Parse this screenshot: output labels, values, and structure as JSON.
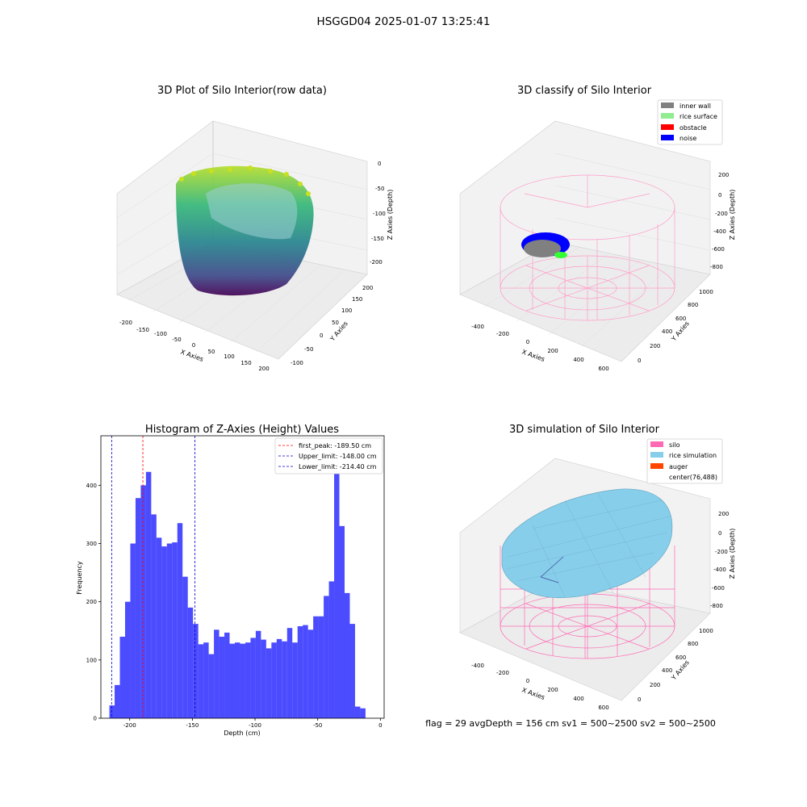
{
  "suptitle": "HSGGD04 2025-01-07 13:25:41",
  "footer": "flag = 29  avgDepth = 156 cm  sv1 = 500~2500  sv2 = 500~2500",
  "panels": {
    "raw": {
      "title": "3D Plot of Silo Interior(row data)",
      "xlabel": "X Axies",
      "ylabel": "Y Axies",
      "zlabel": "Z Axies (Depth)",
      "xticks": [
        "-200",
        "-150",
        "-100",
        "-50",
        "0",
        "50",
        "100",
        "150",
        "200"
      ],
      "yticks": [
        "-100",
        "-50",
        "0",
        "50",
        "100",
        "150",
        "200"
      ],
      "zticks": [
        "0",
        "-50",
        "-100",
        "-150",
        "-200"
      ]
    },
    "classify": {
      "title": "3D classify of Silo Interior",
      "xlabel": "X Axies",
      "ylabel": "Y Axies",
      "zlabel": "Z Axies (Depth)",
      "xticks": [
        "-400",
        "-200",
        "0",
        "200",
        "400",
        "600"
      ],
      "yticks": [
        "0",
        "200",
        "400",
        "600",
        "800",
        "1000"
      ],
      "zticks": [
        "200",
        "0",
        "-200",
        "-400",
        "-600",
        "-800"
      ],
      "legend": [
        {
          "label": "inner wall",
          "color": "#808080"
        },
        {
          "label": "rice surface",
          "color": "#90ee90"
        },
        {
          "label": "obstacle",
          "color": "#ff0000"
        },
        {
          "label": "noise",
          "color": "#0000ff"
        }
      ]
    },
    "simulation": {
      "title": "3D simulation of Silo Interior",
      "xlabel": "X Axies",
      "ylabel": "Y Axies",
      "zlabel": "Z Axies (Depth)",
      "xticks": [
        "-400",
        "-200",
        "0",
        "200",
        "400",
        "600"
      ],
      "yticks": [
        "0",
        "200",
        "400",
        "600",
        "800",
        "1000"
      ],
      "zticks": [
        "200",
        "0",
        "-200",
        "-400",
        "-600",
        "-800"
      ],
      "legend": [
        {
          "label": "silo",
          "color": "#ff69b4"
        },
        {
          "label": "rice simulation",
          "color": "#87ceeb"
        },
        {
          "label": "auger",
          "color": "#ff4500"
        },
        {
          "label": "center(76,488)",
          "color": "#ffffff"
        }
      ]
    }
  },
  "chart_data": [
    {
      "type": "bar",
      "title": "Histogram of Z-Axies (Height) Values",
      "xlabel": "Depth (cm)",
      "ylabel": "Frequency",
      "xlim": [
        -223,
        3
      ],
      "ylim": [
        0,
        485
      ],
      "xticks": [
        -200,
        -150,
        -100,
        -50,
        0
      ],
      "yticks": [
        0,
        100,
        200,
        300,
        400
      ],
      "bin_start": -216.2,
      "bin_width": 4.17,
      "values": [
        22,
        57,
        140,
        200,
        300,
        378,
        400,
        423,
        350,
        310,
        295,
        300,
        302,
        335,
        243,
        190,
        162,
        127,
        130,
        110,
        152,
        140,
        147,
        128,
        130,
        128,
        130,
        138,
        150,
        135,
        120,
        130,
        136,
        132,
        155,
        130,
        158,
        160,
        152,
        175,
        175,
        210,
        235,
        420,
        330,
        215,
        162,
        20,
        17
      ],
      "color": "#0000ff",
      "vlines": [
        {
          "label": "first_peak: -189.50 cm",
          "value": -189.5,
          "color": "#ff0000"
        },
        {
          "label": "Upper_limit: -148.00 cm",
          "value": -148.0,
          "color": "#0000cd"
        },
        {
          "label": "Lower_limit: -214.40 cm",
          "value": -214.4,
          "color": "#0000cd"
        }
      ]
    }
  ]
}
